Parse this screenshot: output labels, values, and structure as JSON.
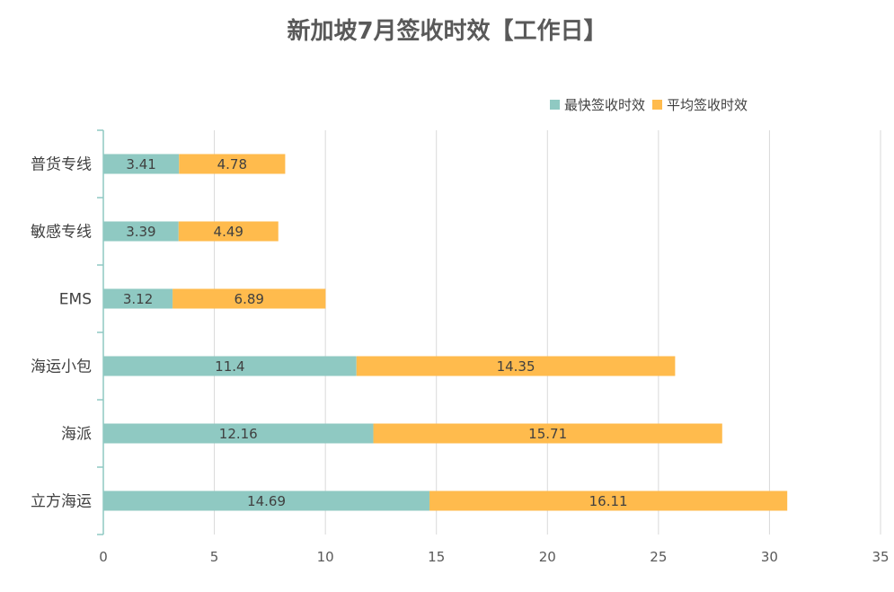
{
  "chart_data": {
    "type": "bar",
    "orientation": "horizontal",
    "stacked": true,
    "title": "新加坡7月签收时效【工作日】",
    "categories": [
      "普货专线",
      "敏感专线",
      "EMS",
      "海运小包",
      "海派",
      "立方海运"
    ],
    "series": [
      {
        "name": "最快签收时效",
        "color": "#8fc9c2",
        "values": [
          3.41,
          3.39,
          3.12,
          11.4,
          12.16,
          14.69
        ]
      },
      {
        "name": "平均签收时效",
        "color": "#ffbb4d",
        "values": [
          4.78,
          4.49,
          6.89,
          14.35,
          15.71,
          16.11
        ]
      }
    ],
    "xlim": [
      0,
      35
    ],
    "xticks": [
      0,
      5,
      10,
      15,
      20,
      25,
      30,
      35
    ],
    "grid": "vertical",
    "legend_position": "top-right",
    "axis_color": "#8fc9c2",
    "grid_color": "#d9d9d9"
  }
}
